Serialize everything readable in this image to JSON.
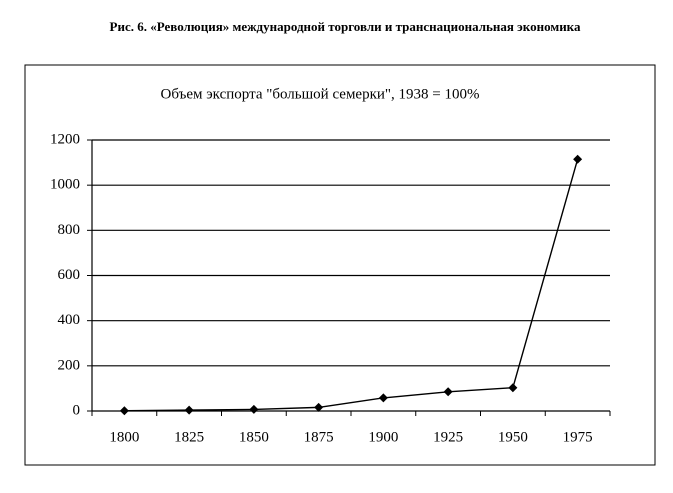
{
  "chart_data": {
    "type": "line",
    "title": "Рис. 6. «Революция» международной торговли и транснациональная экономика",
    "subtitle": "Объем экспорта \"большой семерки\", 1938 = 100%",
    "categories": [
      "1800",
      "1825",
      "1850",
      "1875",
      "1900",
      "1925",
      "1950",
      "1975"
    ],
    "values": [
      1,
      4,
      7,
      16,
      58,
      85,
      103,
      1115
    ],
    "color": "#000000",
    "ylim": [
      0,
      1200
    ],
    "yticks": [
      0,
      200,
      400,
      600,
      800,
      1000,
      1200
    ],
    "grid": true
  }
}
